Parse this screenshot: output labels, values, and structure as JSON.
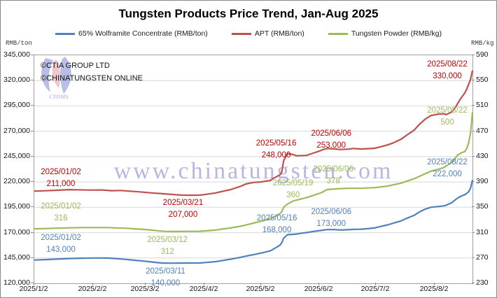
{
  "title": "Tungsten Products Price Trend, Jan-Aug 2025",
  "legend": [
    {
      "label": "65% Wolframite Concentrate (RMB/ton)",
      "color": "#4F81BD"
    },
    {
      "label": "APT (RMB/ton)",
      "color": "#C0504D"
    },
    {
      "label": "Tungsten Powder (RMB/kg)",
      "color": "#9BBB59"
    }
  ],
  "left_axis": {
    "unit": "RMB/ton",
    "min": 120000,
    "max": 345000,
    "ticks": [
      "345,000",
      "320,000",
      "295,000",
      "270,000",
      "245,000",
      "220,000",
      "195,000",
      "170,000",
      "145,000",
      "120,000"
    ]
  },
  "right_axis": {
    "unit": "RMB/kg",
    "min": 230,
    "max": 590,
    "ticks": [
      "590",
      "550",
      "510",
      "470",
      "430",
      "390",
      "350",
      "310",
      "270",
      "230"
    ]
  },
  "x_axis": {
    "labels": [
      "2025/1/2",
      "2025/2/2",
      "2025/3/2",
      "2025/4/2",
      "2025/5/2",
      "2025/6/2",
      "2025/7/2",
      "2025/8/2"
    ],
    "start": "2025/1/2",
    "end": "2025/8/22"
  },
  "copyright": [
    "©CTIA GROUP LTD",
    "©CHINATUNGSTEN ONLINE"
  ],
  "watermark": {
    "text": "www.chinatungsten.com",
    "logo_text": "CTOMS",
    "color": "rgba(124,124,199,0.55)"
  },
  "chart_data": {
    "type": "line",
    "title": "Tungsten Products Price Trend, Jan-Aug 2025",
    "xlabel": "",
    "ylabel_left": "RMB/ton",
    "ylabel_right": "RMB/kg",
    "ylim_left": [
      120000,
      345000
    ],
    "ylim_right": [
      230,
      590
    ],
    "grid": "horizontal",
    "legend_position": "top",
    "series": [
      {
        "name": "65% Wolframite Concentrate (RMB/ton)",
        "axis": "left",
        "color": "#4F81BD",
        "points": [
          [
            "1/2",
            143000
          ],
          [
            "1/8",
            143400
          ],
          [
            "1/14",
            143900
          ],
          [
            "1/20",
            144400
          ],
          [
            "1/27",
            144800
          ],
          [
            "2/3",
            145000
          ],
          [
            "2/10",
            144900
          ],
          [
            "2/14",
            144400
          ],
          [
            "2/19",
            143700
          ],
          [
            "2/24",
            142800
          ],
          [
            "3/1",
            141900
          ],
          [
            "3/5",
            141100
          ],
          [
            "3/8",
            140400
          ],
          [
            "3/11",
            140000
          ],
          [
            "3/17",
            139900
          ],
          [
            "3/24",
            140000
          ],
          [
            "3/31",
            140100
          ],
          [
            "4/3",
            140600
          ],
          [
            "4/8",
            141400
          ],
          [
            "4/11",
            142300
          ],
          [
            "4/16",
            143800
          ],
          [
            "4/21",
            145600
          ],
          [
            "4/24",
            146800
          ],
          [
            "4/28",
            148200
          ],
          [
            "5/2",
            149800
          ],
          [
            "5/7",
            152000
          ],
          [
            "5/9",
            154200
          ],
          [
            "5/12",
            157500
          ],
          [
            "5/13",
            160000
          ],
          [
            "5/14",
            164500
          ],
          [
            "5/16",
            168000
          ],
          [
            "5/20",
            168400
          ],
          [
            "5/23",
            169300
          ],
          [
            "5/27",
            170300
          ],
          [
            "5/30",
            171200
          ],
          [
            "6/3",
            172200
          ],
          [
            "6/6",
            173000
          ],
          [
            "6/10",
            173000
          ],
          [
            "6/13",
            172600
          ],
          [
            "6/17",
            172900
          ],
          [
            "6/20",
            173200
          ],
          [
            "6/24",
            173400
          ],
          [
            "6/27",
            173800
          ],
          [
            "7/1",
            174600
          ],
          [
            "7/4",
            176000
          ],
          [
            "7/8",
            177600
          ],
          [
            "7/11",
            179300
          ],
          [
            "7/15",
            181500
          ],
          [
            "7/18",
            184000
          ],
          [
            "7/22",
            187000
          ],
          [
            "7/25",
            190500
          ],
          [
            "7/28",
            193200
          ],
          [
            "7/31",
            195000
          ],
          [
            "8/4",
            195800
          ],
          [
            "8/7",
            196500
          ],
          [
            "8/8",
            197000
          ],
          [
            "8/11",
            199500
          ],
          [
            "8/13",
            202500
          ],
          [
            "8/14",
            204000
          ],
          [
            "8/16",
            206000
          ],
          [
            "8/18",
            207500
          ],
          [
            "8/19",
            208800
          ],
          [
            "8/20",
            210500
          ],
          [
            "8/21",
            214000
          ],
          [
            "8/22",
            222000
          ]
        ]
      },
      {
        "name": "APT (RMB/ton)",
        "axis": "left",
        "color": "#C0504D",
        "points": [
          [
            "1/2",
            211000
          ],
          [
            "1/8",
            211300
          ],
          [
            "1/14",
            211800
          ],
          [
            "1/20",
            212400
          ],
          [
            "1/24",
            212300
          ],
          [
            "1/31",
            212000
          ],
          [
            "2/7",
            212100
          ],
          [
            "2/12",
            211400
          ],
          [
            "2/17",
            211600
          ],
          [
            "2/21",
            211000
          ],
          [
            "2/27",
            210200
          ],
          [
            "3/5",
            209200
          ],
          [
            "3/11",
            208400
          ],
          [
            "3/17",
            207500
          ],
          [
            "3/21",
            207000
          ],
          [
            "3/26",
            206900
          ],
          [
            "3/31",
            207000
          ],
          [
            "4/3",
            207800
          ],
          [
            "4/8",
            209200
          ],
          [
            "4/11",
            210500
          ],
          [
            "4/16",
            212500
          ],
          [
            "4/21",
            215500
          ],
          [
            "4/24",
            218000
          ],
          [
            "4/28",
            219500
          ],
          [
            "5/2",
            220000
          ],
          [
            "5/7",
            221500
          ],
          [
            "5/9",
            224000
          ],
          [
            "5/12",
            227000
          ],
          [
            "5/13",
            229500
          ],
          [
            "5/14",
            241000
          ],
          [
            "5/16",
            248000
          ],
          [
            "5/19",
            247000
          ],
          [
            "5/21",
            245800
          ],
          [
            "5/26",
            246200
          ],
          [
            "5/29",
            248000
          ],
          [
            "6/2",
            250500
          ],
          [
            "6/4",
            252000
          ],
          [
            "6/6",
            253000
          ],
          [
            "6/10",
            252600
          ],
          [
            "6/13",
            252000
          ],
          [
            "6/17",
            252400
          ],
          [
            "6/20",
            253000
          ],
          [
            "6/24",
            252500
          ],
          [
            "6/27",
            252800
          ],
          [
            "7/1",
            253200
          ],
          [
            "7/4",
            254500
          ],
          [
            "7/8",
            256500
          ],
          [
            "7/11",
            258500
          ],
          [
            "7/15",
            262000
          ],
          [
            "7/18",
            266000
          ],
          [
            "7/22",
            271000
          ],
          [
            "7/25",
            277000
          ],
          [
            "7/28",
            282000
          ],
          [
            "7/31",
            285500
          ],
          [
            "8/4",
            287000
          ],
          [
            "8/7",
            287200
          ],
          [
            "8/8",
            286400
          ],
          [
            "8/11",
            289000
          ],
          [
            "8/13",
            293500
          ],
          [
            "8/14",
            297000
          ],
          [
            "8/16",
            303000
          ],
          [
            "8/18",
            308000
          ],
          [
            "8/19",
            312000
          ],
          [
            "8/20",
            316500
          ],
          [
            "8/21",
            321500
          ],
          [
            "8/22",
            330000
          ]
        ]
      },
      {
        "name": "Tungsten Powder (RMB/kg)",
        "axis": "right",
        "color": "#9BBB59",
        "points": [
          [
            "1/2",
            316
          ],
          [
            "1/8",
            316.5
          ],
          [
            "1/14",
            317
          ],
          [
            "1/20",
            317.5
          ],
          [
            "1/27",
            318
          ],
          [
            "2/3",
            318
          ],
          [
            "2/10",
            318
          ],
          [
            "2/14",
            317.5
          ],
          [
            "2/19",
            317
          ],
          [
            "2/24",
            316
          ],
          [
            "3/1",
            315
          ],
          [
            "3/5",
            314
          ],
          [
            "3/8",
            313
          ],
          [
            "3/12",
            312
          ],
          [
            "3/18",
            311.8
          ],
          [
            "3/24",
            312
          ],
          [
            "3/31",
            312.2
          ],
          [
            "4/3",
            312.8
          ],
          [
            "4/8",
            314
          ],
          [
            "4/11",
            315.5
          ],
          [
            "4/16",
            317.5
          ],
          [
            "4/21",
            320
          ],
          [
            "4/24",
            322
          ],
          [
            "4/28",
            325
          ],
          [
            "5/2",
            328
          ],
          [
            "5/7",
            332
          ],
          [
            "5/9",
            335
          ],
          [
            "5/12",
            340
          ],
          [
            "5/13",
            343
          ],
          [
            "5/14",
            350
          ],
          [
            "5/16",
            355
          ],
          [
            "5/19",
            360
          ],
          [
            "5/21",
            361.5
          ],
          [
            "5/23",
            363
          ],
          [
            "5/27",
            366
          ],
          [
            "5/30",
            369
          ],
          [
            "6/3",
            373
          ],
          [
            "6/6",
            378
          ],
          [
            "6/10",
            379
          ],
          [
            "6/13",
            379.5
          ],
          [
            "6/17",
            380
          ],
          [
            "6/20",
            380
          ],
          [
            "6/24",
            380
          ],
          [
            "6/27",
            380.5
          ],
          [
            "7/1",
            381
          ],
          [
            "7/4",
            382
          ],
          [
            "7/8",
            383.5
          ],
          [
            "7/11",
            385.5
          ],
          [
            "7/15",
            388
          ],
          [
            "7/18",
            391
          ],
          [
            "7/22",
            395
          ],
          [
            "7/25",
            399
          ],
          [
            "7/28",
            403
          ],
          [
            "7/31",
            407
          ],
          [
            "8/4",
            410
          ],
          [
            "8/7",
            413
          ],
          [
            "8/8",
            415
          ],
          [
            "8/11",
            421
          ],
          [
            "8/13",
            428
          ],
          [
            "8/14",
            432
          ],
          [
            "8/16",
            436
          ],
          [
            "8/18",
            438
          ],
          [
            "8/19",
            443
          ],
          [
            "8/20",
            452
          ],
          [
            "8/21",
            468
          ],
          [
            "8/22",
            500
          ]
        ]
      }
    ],
    "annotations": [
      {
        "series": "APT (RMB/ton)",
        "axis": "left",
        "date": "1/2",
        "value": 211000,
        "date_label": "2025/01/02",
        "value_label": "211,000",
        "color": "#C00000"
      },
      {
        "series": "Tungsten Powder (RMB/kg)",
        "axis": "right",
        "date": "1/2",
        "value": 316,
        "date_label": "2025/01/02",
        "value_label": "316",
        "color": "#9BBB59"
      },
      {
        "series": "65% Wolframite Concentrate (RMB/ton)",
        "axis": "left",
        "date": "1/2",
        "value": 143000,
        "date_label": "2025/01/02",
        "value_label": "143,000",
        "color": "#4F81BD"
      },
      {
        "series": "APT (RMB/ton)",
        "axis": "left",
        "date": "3/21",
        "value": 207000,
        "date_label": "2025/03/21",
        "value_label": "207,000",
        "color": "#C00000"
      },
      {
        "series": "Tungsten Powder (RMB/kg)",
        "axis": "right",
        "date": "3/12",
        "value": 312,
        "date_label": "2025/03/12",
        "value_label": "312",
        "color": "#9BBB59"
      },
      {
        "series": "65% Wolframite Concentrate (RMB/ton)",
        "axis": "left",
        "date": "3/11",
        "value": 140000,
        "date_label": "2025/03/11",
        "value_label": "140,000",
        "color": "#4F81BD"
      },
      {
        "series": "APT (RMB/ton)",
        "axis": "left",
        "date": "5/16",
        "value": 248000,
        "date_label": "2025/05/16",
        "value_label": "248,000",
        "color": "#C00000"
      },
      {
        "series": "Tungsten Powder (RMB/kg)",
        "axis": "right",
        "date": "5/19",
        "value": 360,
        "date_label": "2025/05/19",
        "value_label": "360",
        "color": "#9BBB59"
      },
      {
        "series": "65% Wolframite Concentrate (RMB/ton)",
        "axis": "left",
        "date": "5/16",
        "value": 168000,
        "date_label": "2025/05/16",
        "value_label": "168,000",
        "color": "#4F81BD"
      },
      {
        "series": "APT (RMB/ton)",
        "axis": "left",
        "date": "6/6",
        "value": 253000,
        "date_label": "2025/06/06",
        "value_label": "253,000",
        "color": "#C00000"
      },
      {
        "series": "Tungsten Powder (RMB/kg)",
        "axis": "right",
        "date": "6/6",
        "value": 378,
        "date_label": "2025/06/06",
        "value_label": "378",
        "color": "#9BBB59"
      },
      {
        "series": "65% Wolframite Concentrate (RMB/ton)",
        "axis": "left",
        "date": "6/6",
        "value": 173000,
        "date_label": "2025/06/06",
        "value_label": "173,000",
        "color": "#4F81BD"
      },
      {
        "series": "APT (RMB/ton)",
        "axis": "left",
        "date": "8/22",
        "value": 330000,
        "date_label": "2025/08/22",
        "value_label": "330,000",
        "color": "#C00000"
      },
      {
        "series": "Tungsten Powder (RMB/kg)",
        "axis": "right",
        "date": "8/22",
        "value": 500,
        "date_label": "2025/08/22",
        "value_label": "500",
        "color": "#9BBB59"
      },
      {
        "series": "65% Wolframite Concentrate (RMB/ton)",
        "axis": "left",
        "date": "8/22",
        "value": 222000,
        "date_label": "2025/08/22",
        "value_label": "222,000",
        "color": "#4F81BD"
      }
    ]
  }
}
